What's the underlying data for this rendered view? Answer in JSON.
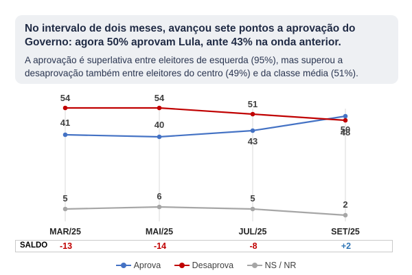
{
  "info": {
    "title": "No intervalo de dois meses, avançou sete pontos a aprovação do Governo: agora 50% aprovam Lula, ante 43% na onda anterior.",
    "subtitle": "A aprovação é superlativa entre eleitores de esquerda (95%), mas superou a desaprovação também entre eleitores do centro (49%) e da classe média (51%)."
  },
  "chart_data": {
    "type": "line",
    "categories": [
      "MAR/25",
      "MAI/25",
      "JUL/25",
      "SET/25"
    ],
    "series": [
      {
        "name": "Aprova",
        "values": [
          41,
          40,
          43,
          50
        ],
        "color": "#4472c4"
      },
      {
        "name": "Desaprova",
        "values": [
          54,
          54,
          51,
          48
        ],
        "color": "#c00000"
      },
      {
        "name": "NS / NR",
        "values": [
          5,
          6,
          5,
          2
        ],
        "color": "#a6a6a6"
      }
    ],
    "saldo": {
      "label": "SALDO",
      "values": [
        "-13",
        "-14",
        "-8",
        "+2"
      ],
      "colors": [
        "#c00000",
        "#c00000",
        "#c00000",
        "#2e75b6"
      ]
    }
  }
}
